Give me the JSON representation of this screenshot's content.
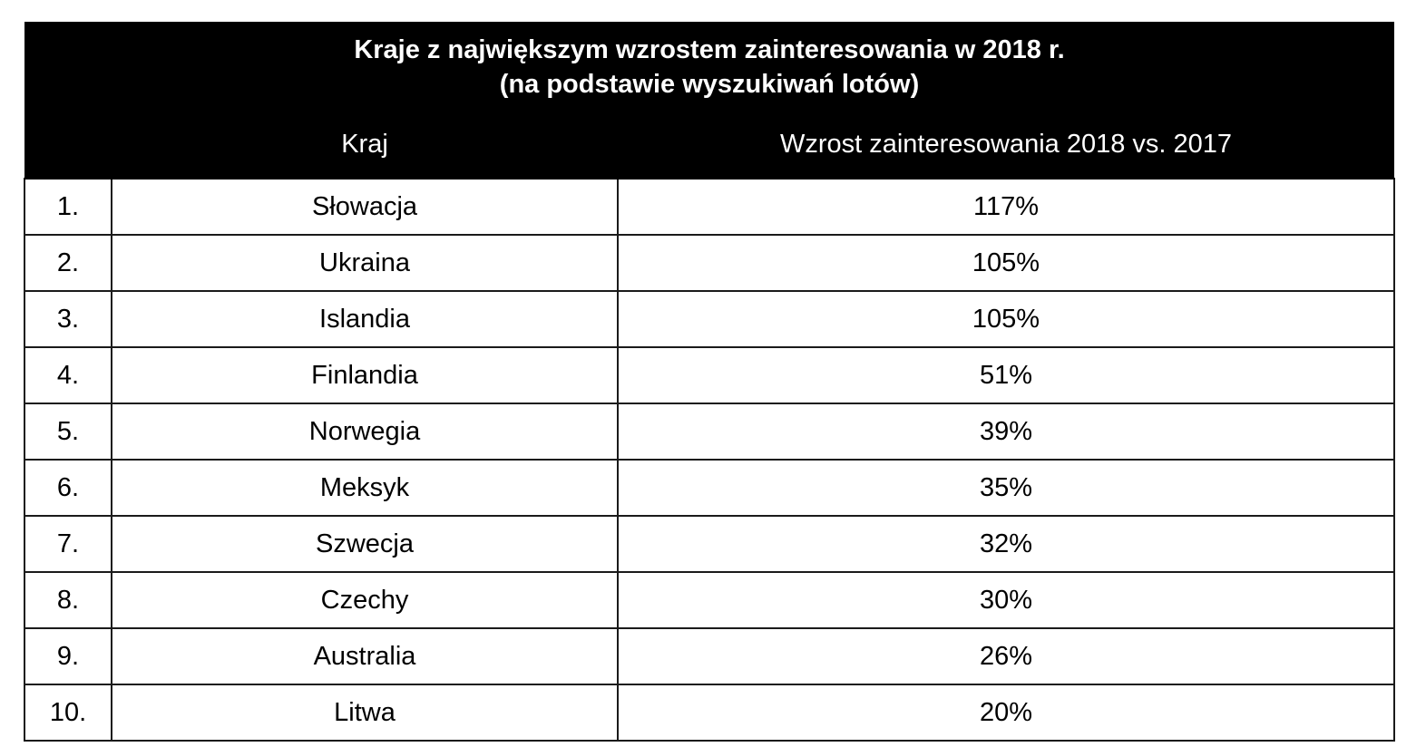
{
  "title_line1": "Kraje z największym wzrostem zainteresowania w 2018 r.",
  "title_line2": "(na podstawie wyszukiwań lotów)",
  "headers": {
    "rank": "",
    "country": "Kraj",
    "growth": "Wzrost zainteresowania 2018 vs. 2017"
  },
  "rows": [
    {
      "rank": "1.",
      "country": "Słowacja",
      "growth": "117%"
    },
    {
      "rank": "2.",
      "country": "Ukraina",
      "growth": "105%"
    },
    {
      "rank": "3.",
      "country": "Islandia",
      "growth": "105%"
    },
    {
      "rank": "4.",
      "country": "Finlandia",
      "growth": "51%"
    },
    {
      "rank": "5.",
      "country": "Norwegia",
      "growth": "39%"
    },
    {
      "rank": "6.",
      "country": "Meksyk",
      "growth": "35%"
    },
    {
      "rank": "7.",
      "country": "Szwecja",
      "growth": "32%"
    },
    {
      "rank": "8.",
      "country": "Czechy",
      "growth": "30%"
    },
    {
      "rank": "9.",
      "country": "Australia",
      "growth": "26%"
    },
    {
      "rank": "10.",
      "country": "Litwa",
      "growth": "20%"
    }
  ],
  "colors": {
    "header_bg": "#000000",
    "header_text": "#ffffff",
    "border": "#1a1a1a"
  }
}
